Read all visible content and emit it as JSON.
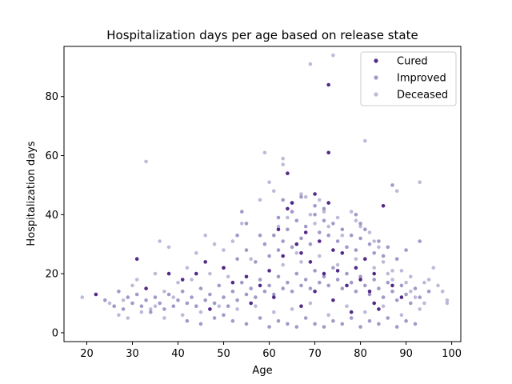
{
  "chart_data": {
    "type": "scatter",
    "title": "Hospitalization days per age based on release state",
    "xlabel": "Age",
    "ylabel": "Hospitalization days",
    "xlim": [
      15,
      102
    ],
    "ylim": [
      -3,
      97
    ],
    "xticks": [
      20,
      30,
      40,
      50,
      60,
      70,
      80,
      90,
      100
    ],
    "yticks": [
      0,
      20,
      40,
      60,
      80
    ],
    "grid": false,
    "legend_position": "top-right",
    "series": [
      {
        "name": "Cured",
        "color": "#4b1f82",
        "opacity": 0.95,
        "points": [
          [
            22,
            13
          ],
          [
            31,
            25
          ],
          [
            33,
            15
          ],
          [
            38,
            20
          ],
          [
            41,
            18
          ],
          [
            44,
            20
          ],
          [
            46,
            24
          ],
          [
            50,
            22
          ],
          [
            52,
            17
          ],
          [
            55,
            19
          ],
          [
            58,
            16
          ],
          [
            60,
            21
          ],
          [
            62,
            35
          ],
          [
            63,
            26
          ],
          [
            64,
            42
          ],
          [
            64,
            54
          ],
          [
            65,
            44
          ],
          [
            66,
            30
          ],
          [
            67,
            27
          ],
          [
            68,
            34
          ],
          [
            69,
            24
          ],
          [
            70,
            47
          ],
          [
            71,
            31
          ],
          [
            72,
            20
          ],
          [
            73,
            61
          ],
          [
            73,
            84
          ],
          [
            73,
            44
          ],
          [
            74,
            28
          ],
          [
            75,
            21
          ],
          [
            76,
            27
          ],
          [
            77,
            16
          ],
          [
            79,
            22
          ],
          [
            80,
            18
          ],
          [
            81,
            25
          ],
          [
            82,
            14
          ],
          [
            83,
            20
          ],
          [
            84,
            8
          ],
          [
            85,
            43
          ],
          [
            87,
            16
          ],
          [
            89,
            12
          ],
          [
            47,
            8
          ],
          [
            56,
            10
          ],
          [
            61,
            12
          ],
          [
            67,
            9
          ],
          [
            70,
            14
          ],
          [
            74,
            11
          ],
          [
            78,
            7
          ],
          [
            83,
            10
          ]
        ]
      },
      {
        "name": "Improved",
        "color": "#7b6db0",
        "opacity": 0.7,
        "points": [
          [
            24,
            11
          ],
          [
            26,
            9
          ],
          [
            27,
            14
          ],
          [
            28,
            8
          ],
          [
            29,
            12
          ],
          [
            30,
            10
          ],
          [
            31,
            13
          ],
          [
            32,
            9
          ],
          [
            33,
            11
          ],
          [
            34,
            7
          ],
          [
            35,
            12
          ],
          [
            36,
            10
          ],
          [
            37,
            8
          ],
          [
            38,
            13
          ],
          [
            39,
            9
          ],
          [
            40,
            11
          ],
          [
            41,
            14
          ],
          [
            42,
            10
          ],
          [
            43,
            12
          ],
          [
            44,
            9
          ],
          [
            45,
            15
          ],
          [
            46,
            11
          ],
          [
            47,
            13
          ],
          [
            48,
            10
          ],
          [
            49,
            16
          ],
          [
            50,
            12
          ],
          [
            51,
            9
          ],
          [
            52,
            14
          ],
          [
            53,
            11
          ],
          [
            54,
            17
          ],
          [
            55,
            13
          ],
          [
            56,
            15
          ],
          [
            57,
            12
          ],
          [
            58,
            18
          ],
          [
            59,
            14
          ],
          [
            60,
            16
          ],
          [
            61,
            13
          ],
          [
            62,
            19
          ],
          [
            63,
            15
          ],
          [
            64,
            17
          ],
          [
            65,
            14
          ],
          [
            66,
            20
          ],
          [
            67,
            16
          ],
          [
            68,
            18
          ],
          [
            69,
            15
          ],
          [
            70,
            21
          ],
          [
            71,
            17
          ],
          [
            72,
            19
          ],
          [
            73,
            16
          ],
          [
            74,
            22
          ],
          [
            75,
            18
          ],
          [
            76,
            15
          ],
          [
            77,
            20
          ],
          [
            78,
            17
          ],
          [
            79,
            14
          ],
          [
            80,
            19
          ],
          [
            81,
            16
          ],
          [
            82,
            13
          ],
          [
            83,
            18
          ],
          [
            84,
            15
          ],
          [
            85,
            12
          ],
          [
            86,
            17
          ],
          [
            87,
            14
          ],
          [
            88,
            11
          ],
          [
            89,
            16
          ],
          [
            90,
            13
          ],
          [
            91,
            10
          ],
          [
            92,
            15
          ],
          [
            93,
            12
          ],
          [
            95,
            14
          ],
          [
            50,
            22
          ],
          [
            53,
            25
          ],
          [
            55,
            28
          ],
          [
            57,
            24
          ],
          [
            59,
            30
          ],
          [
            60,
            26
          ],
          [
            61,
            33
          ],
          [
            62,
            28
          ],
          [
            63,
            31
          ],
          [
            64,
            35
          ],
          [
            65,
            29
          ],
          [
            66,
            38
          ],
          [
            67,
            32
          ],
          [
            68,
            36
          ],
          [
            69,
            30
          ],
          [
            70,
            40
          ],
          [
            71,
            34
          ],
          [
            72,
            38
          ],
          [
            73,
            33
          ],
          [
            74,
            37
          ],
          [
            75,
            31
          ],
          [
            76,
            35
          ],
          [
            77,
            29
          ],
          [
            78,
            33
          ],
          [
            79,
            28
          ],
          [
            80,
            32
          ],
          [
            81,
            35
          ],
          [
            82,
            30
          ],
          [
            83,
            27
          ],
          [
            84,
            31
          ],
          [
            85,
            26
          ],
          [
            86,
            29
          ],
          [
            87,
            50
          ],
          [
            88,
            25
          ],
          [
            90,
            28
          ],
          [
            93,
            31
          ],
          [
            63,
            45
          ],
          [
            65,
            41
          ],
          [
            67,
            46
          ],
          [
            70,
            43
          ],
          [
            72,
            42
          ],
          [
            62,
            39
          ],
          [
            79,
            40
          ],
          [
            80,
            37
          ],
          [
            54,
            41
          ],
          [
            55,
            37
          ],
          [
            53,
            33
          ],
          [
            58,
            33
          ],
          [
            50,
            6
          ],
          [
            52,
            4
          ],
          [
            55,
            3
          ],
          [
            58,
            5
          ],
          [
            60,
            2
          ],
          [
            62,
            4
          ],
          [
            64,
            3
          ],
          [
            66,
            2
          ],
          [
            68,
            5
          ],
          [
            70,
            3
          ],
          [
            72,
            2
          ],
          [
            74,
            4
          ],
          [
            76,
            3
          ],
          [
            78,
            5
          ],
          [
            80,
            2
          ],
          [
            82,
            4
          ],
          [
            84,
            3
          ],
          [
            86,
            5
          ],
          [
            88,
            2
          ],
          [
            90,
            4
          ],
          [
            92,
            3
          ],
          [
            45,
            3
          ],
          [
            48,
            5
          ],
          [
            42,
            4
          ]
        ]
      },
      {
        "name": "Deceased",
        "color": "#9c93c5",
        "opacity": 0.65,
        "points": [
          [
            19,
            12
          ],
          [
            25,
            10
          ],
          [
            28,
            11
          ],
          [
            30,
            16
          ],
          [
            31,
            18
          ],
          [
            32,
            7
          ],
          [
            33,
            58
          ],
          [
            34,
            8
          ],
          [
            35,
            20
          ],
          [
            36,
            31
          ],
          [
            37,
            14
          ],
          [
            38,
            29
          ],
          [
            39,
            12
          ],
          [
            40,
            17
          ],
          [
            42,
            22
          ],
          [
            44,
            27
          ],
          [
            46,
            33
          ],
          [
            48,
            30
          ],
          [
            50,
            28
          ],
          [
            52,
            31
          ],
          [
            54,
            37
          ],
          [
            56,
            25
          ],
          [
            58,
            45
          ],
          [
            59,
            61
          ],
          [
            60,
            51
          ],
          [
            61,
            48
          ],
          [
            62,
            36
          ],
          [
            63,
            57
          ],
          [
            63,
            59
          ],
          [
            64,
            39
          ],
          [
            65,
            44
          ],
          [
            66,
            27
          ],
          [
            67,
            47
          ],
          [
            68,
            46
          ],
          [
            69,
            40
          ],
          [
            70,
            37
          ],
          [
            71,
            45
          ],
          [
            72,
            41
          ],
          [
            73,
            36
          ],
          [
            74,
            94
          ],
          [
            75,
            39
          ],
          [
            76,
            33
          ],
          [
            78,
            41
          ],
          [
            79,
            38
          ],
          [
            80,
            36
          ],
          [
            81,
            65
          ],
          [
            82,
            34
          ],
          [
            83,
            31
          ],
          [
            84,
            29
          ],
          [
            85,
            24
          ],
          [
            86,
            20
          ],
          [
            87,
            18
          ],
          [
            88,
            48
          ],
          [
            89,
            21
          ],
          [
            90,
            17
          ],
          [
            91,
            14
          ],
          [
            92,
            12
          ],
          [
            93,
            51
          ],
          [
            94,
            10
          ],
          [
            95,
            18
          ],
          [
            96,
            22
          ],
          [
            97,
            16
          ],
          [
            98,
            14
          ],
          [
            99,
            11
          ],
          [
            99,
            10
          ],
          [
            69,
            91
          ],
          [
            57,
            9
          ],
          [
            61,
            7
          ],
          [
            65,
            8
          ],
          [
            69,
            10
          ],
          [
            73,
            6
          ],
          [
            77,
            9
          ],
          [
            81,
            7
          ],
          [
            85,
            9
          ],
          [
            89,
            6
          ],
          [
            93,
            8
          ],
          [
            53,
            8
          ],
          [
            49,
            9
          ],
          [
            45,
            7
          ],
          [
            41,
            6
          ],
          [
            37,
            5
          ],
          [
            27,
            6
          ],
          [
            29,
            5
          ],
          [
            43,
            18
          ],
          [
            47,
            20
          ],
          [
            51,
            19
          ],
          [
            63,
            23
          ],
          [
            67,
            24
          ],
          [
            71,
            26
          ],
          [
            75,
            23
          ],
          [
            79,
            25
          ],
          [
            83,
            22
          ],
          [
            87,
            21
          ],
          [
            91,
            19
          ],
          [
            94,
            17
          ],
          [
            35,
            9
          ]
        ]
      }
    ]
  }
}
